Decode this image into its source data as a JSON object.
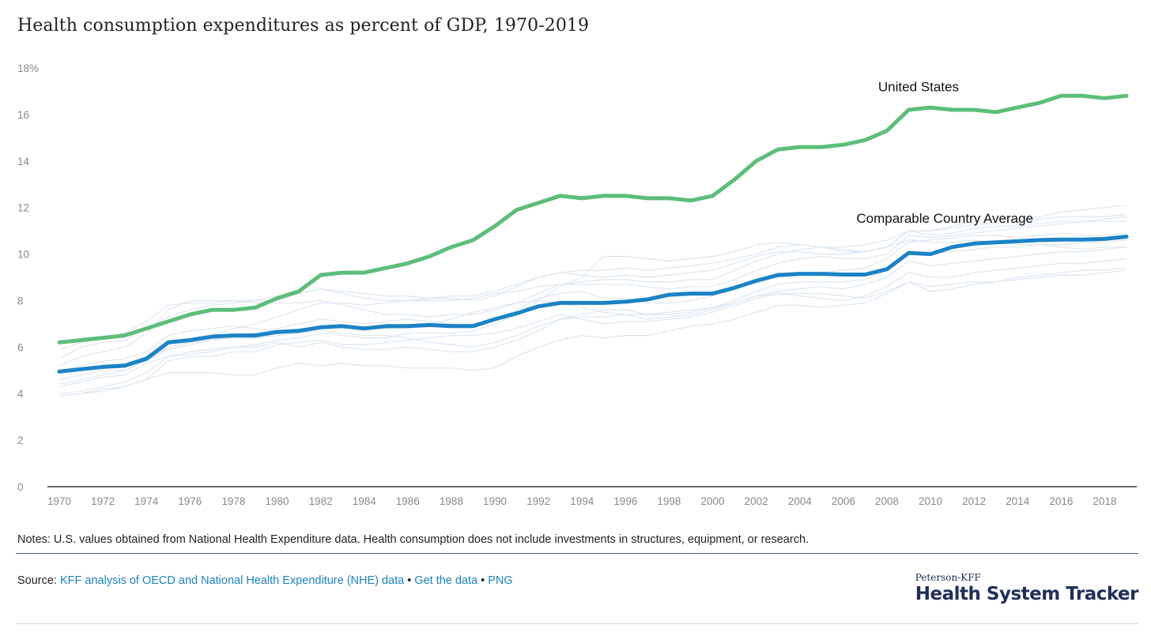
{
  "title": "Health consumption expenditures as percent of GDP, 1970-2019",
  "notes": "Notes: U.S. values obtained from National Health Expenditure data. Health consumption does not include investments in structures, equipment, or research.",
  "source": {
    "label": "Source:",
    "link1": "KFF analysis of OECD and National Health Expenditure (NHE) data",
    "link2": "Get the data",
    "link3": "PNG",
    "separator": "•"
  },
  "brand": {
    "top": "Peterson-KFF",
    "main": "Health System Tracker"
  },
  "colors": {
    "us": "#5cbe7a",
    "avg": "#1b83c6",
    "countries": "#dde7f0",
    "axis": "#111111",
    "tick_text": "#8a8a8a"
  },
  "chart_data": {
    "type": "line",
    "title": "Health consumption expenditures as percent of GDP, 1970-2019",
    "xlabel": "",
    "ylabel": "",
    "xlim": [
      1970,
      2019
    ],
    "ylim": [
      0,
      18
    ],
    "x_ticks": [
      "1970",
      "1972",
      "1974",
      "1976",
      "1978",
      "1980",
      "1982",
      "1984",
      "1986",
      "1988",
      "1990",
      "1992",
      "1994",
      "1996",
      "1998",
      "2000",
      "2002",
      "2004",
      "2006",
      "2008",
      "2010",
      "2012",
      "2014",
      "2016",
      "2018"
    ],
    "y_ticks": [
      "0",
      "2",
      "4",
      "6",
      "8",
      "10",
      "12",
      "14",
      "16",
      "18%"
    ],
    "grid": false,
    "x": [
      1970,
      1971,
      1972,
      1973,
      1974,
      1975,
      1976,
      1977,
      1978,
      1979,
      1980,
      1981,
      1982,
      1983,
      1984,
      1985,
      1986,
      1987,
      1988,
      1989,
      1990,
      1991,
      1992,
      1993,
      1994,
      1995,
      1996,
      1997,
      1998,
      1999,
      2000,
      2001,
      2002,
      2003,
      2004,
      2005,
      2006,
      2007,
      2008,
      2009,
      2010,
      2011,
      2012,
      2013,
      2014,
      2015,
      2016,
      2017,
      2018,
      2019
    ],
    "series": [
      {
        "name": "United States",
        "label": "United States",
        "emphasis": true,
        "values": [
          6.2,
          6.3,
          6.4,
          6.5,
          6.8,
          7.1,
          7.4,
          7.6,
          7.6,
          7.7,
          8.1,
          8.4,
          9.1,
          9.2,
          9.2,
          9.4,
          9.6,
          9.9,
          10.3,
          10.6,
          11.2,
          11.9,
          12.2,
          12.5,
          12.4,
          12.5,
          12.5,
          12.4,
          12.4,
          12.3,
          12.5,
          13.2,
          14.0,
          14.5,
          14.6,
          14.6,
          14.7,
          14.9,
          15.3,
          16.2,
          16.3,
          16.2,
          16.2,
          16.1,
          16.3,
          16.5,
          16.8,
          16.8,
          16.7,
          16.8
        ]
      },
      {
        "name": "Comparable Country Average",
        "label": "Comparable Country Average",
        "emphasis": true,
        "values": [
          4.95,
          5.05,
          5.15,
          5.2,
          5.5,
          6.2,
          6.3,
          6.45,
          6.5,
          6.5,
          6.65,
          6.7,
          6.85,
          6.9,
          6.8,
          6.9,
          6.9,
          6.95,
          6.9,
          6.9,
          7.2,
          7.45,
          7.75,
          7.9,
          7.9,
          7.9,
          7.95,
          8.05,
          8.25,
          8.3,
          8.3,
          8.55,
          8.85,
          9.1,
          9.15,
          9.15,
          9.12,
          9.12,
          9.35,
          10.05,
          10.0,
          10.3,
          10.45,
          10.5,
          10.55,
          10.6,
          10.62,
          10.62,
          10.65,
          10.75
        ]
      },
      {
        "name": "",
        "emphasis": false,
        "values": [
          5.5,
          6.0,
          6.2,
          6.3,
          6.8,
          7.3,
          7.6,
          7.8,
          7.9,
          8.0,
          8.2,
          8.3,
          8.5,
          8.4,
          8.3,
          8.2,
          8.2,
          8.1,
          8.1,
          8.0,
          8.2,
          8.6,
          9.0,
          9.2,
          9.3,
          9.3,
          9.4,
          9.3,
          9.4,
          9.5,
          9.6,
          9.8,
          10.0,
          10.3,
          10.4,
          10.3,
          10.3,
          10.4,
          10.6,
          11.0,
          11.0,
          11.1,
          11.3,
          11.3,
          11.4,
          11.5,
          11.6,
          11.6,
          11.6,
          11.7
        ]
      },
      {
        "name": "",
        "emphasis": false,
        "values": [
          5.2,
          5.6,
          5.8,
          6.0,
          6.6,
          7.6,
          8.0,
          8.0,
          8.0,
          7.9,
          7.9,
          7.9,
          8.0,
          7.8,
          7.6,
          7.4,
          7.4,
          7.3,
          7.4,
          7.4,
          7.6,
          7.9,
          8.3,
          8.7,
          8.8,
          8.9,
          8.9,
          8.8,
          8.8,
          8.9,
          8.9,
          9.3,
          9.7,
          10.0,
          10.2,
          10.3,
          10.2,
          10.1,
          10.3,
          11.0,
          10.8,
          10.9,
          11.1,
          11.2,
          11.2,
          11.3,
          11.4,
          11.4,
          11.4,
          11.4
        ]
      },
      {
        "name": "",
        "emphasis": false,
        "values": [
          4.3,
          4.5,
          4.7,
          4.8,
          5.3,
          5.6,
          5.8,
          5.9,
          6.0,
          6.1,
          6.3,
          6.4,
          6.6,
          6.5,
          6.4,
          6.4,
          6.6,
          6.6,
          6.6,
          6.7,
          7.0,
          7.4,
          8.0,
          8.6,
          9.0,
          9.9,
          9.9,
          9.8,
          9.7,
          9.8,
          9.9,
          10.1,
          10.4,
          10.5,
          10.4,
          10.3,
          10.1,
          10.1,
          10.3,
          10.6,
          10.5,
          10.5,
          10.6,
          10.5,
          10.4,
          10.4,
          10.3,
          10.2,
          10.3,
          10.3
        ]
      },
      {
        "name": "",
        "emphasis": false,
        "values": [
          4.6,
          4.8,
          5.0,
          5.0,
          5.4,
          5.9,
          6.1,
          6.3,
          6.5,
          6.6,
          6.8,
          7.0,
          7.2,
          7.1,
          7.0,
          7.1,
          7.2,
          7.1,
          7.0,
          7.0,
          7.2,
          7.6,
          8.1,
          8.3,
          8.4,
          8.1,
          8.1,
          7.9,
          7.9,
          8.0,
          8.2,
          8.5,
          8.8,
          9.0,
          9.1,
          9.2,
          9.3,
          9.4,
          9.8,
          10.5,
          10.6,
          10.7,
          10.8,
          10.8,
          10.7,
          10.8,
          10.9,
          10.8,
          10.8,
          10.9
        ]
      },
      {
        "name": "",
        "emphasis": false,
        "values": [
          5.0,
          5.2,
          5.4,
          5.5,
          5.8,
          6.5,
          6.7,
          6.8,
          6.9,
          6.8,
          6.7,
          6.6,
          6.8,
          6.9,
          6.9,
          6.8,
          6.8,
          7.0,
          7.2,
          7.5,
          7.7,
          7.9,
          8.0,
          7.9,
          7.7,
          7.5,
          7.4,
          7.2,
          7.3,
          7.4,
          7.6,
          7.9,
          8.2,
          8.3,
          8.2,
          8.1,
          8.0,
          8.2,
          8.6,
          9.2,
          9.0,
          9.0,
          9.2,
          9.3,
          9.4,
          9.5,
          9.6,
          9.6,
          9.7,
          9.8
        ]
      },
      {
        "name": "",
        "emphasis": false,
        "values": [
          3.9,
          4.0,
          4.1,
          4.3,
          4.6,
          5.4,
          5.6,
          5.6,
          5.8,
          5.8,
          6.1,
          6.2,
          6.3,
          6.1,
          6.1,
          6.2,
          6.3,
          6.4,
          6.5,
          6.5,
          6.6,
          6.8,
          7.1,
          7.4,
          7.2,
          7.0,
          7.1,
          7.1,
          7.2,
          7.3,
          7.5,
          7.8,
          8.1,
          8.3,
          8.3,
          8.3,
          8.2,
          8.1,
          8.4,
          8.8,
          8.6,
          8.7,
          8.8,
          8.8,
          8.9,
          9.0,
          9.1,
          9.1,
          9.2,
          9.3
        ]
      },
      {
        "name": "",
        "emphasis": false,
        "values": [
          4.0,
          4.1,
          4.3,
          4.5,
          4.9,
          5.6,
          5.7,
          5.8,
          6.0,
          6.0,
          6.2,
          6.0,
          6.2,
          6.0,
          5.9,
          5.9,
          6.0,
          5.9,
          5.8,
          5.8,
          6.0,
          6.3,
          6.7,
          7.2,
          7.4,
          7.6,
          7.6,
          7.4,
          7.5,
          7.6,
          7.7,
          7.9,
          8.2,
          8.4,
          8.5,
          8.6,
          8.5,
          8.7,
          9.0,
          9.7,
          9.5,
          9.6,
          9.7,
          9.8,
          9.9,
          10.0,
          10.1,
          10.1,
          10.2,
          10.3
        ]
      },
      {
        "name": "",
        "emphasis": false,
        "values": [
          5.9,
          6.2,
          6.4,
          6.6,
          7.1,
          7.8,
          7.9,
          7.9,
          8.0,
          8.0,
          8.0,
          8.3,
          8.5,
          8.3,
          8.1,
          8.0,
          8.0,
          8.0,
          8.0,
          8.1,
          8.3,
          8.4,
          8.6,
          8.7,
          8.7,
          8.7,
          8.7,
          8.6,
          8.5,
          8.6,
          8.6,
          8.9,
          9.3,
          9.6,
          9.8,
          9.9,
          9.8,
          9.8,
          10.0,
          10.8,
          10.7,
          10.8,
          10.9,
          11.0,
          11.1,
          11.2,
          11.3,
          11.4,
          11.5,
          11.6
        ]
      },
      {
        "name": "",
        "emphasis": false,
        "values": [
          4.4,
          4.6,
          4.8,
          5.0,
          5.4,
          6.0,
          6.2,
          6.3,
          6.4,
          6.4,
          6.5,
          6.6,
          6.7,
          6.6,
          6.5,
          6.5,
          6.4,
          6.2,
          6.1,
          6.0,
          6.2,
          6.5,
          6.9,
          7.2,
          7.3,
          7.3,
          7.4,
          7.4,
          7.4,
          7.5,
          7.7,
          8.0,
          8.4,
          8.7,
          8.8,
          8.8,
          8.8,
          8.9,
          9.3,
          10.1,
          10.0,
          10.1,
          10.2,
          10.3,
          10.3,
          10.4,
          10.4,
          10.5,
          10.5,
          10.6
        ]
      },
      {
        "name": "",
        "emphasis": false,
        "values": [
          4.9,
          5.1,
          5.2,
          5.3,
          5.6,
          6.0,
          6.2,
          6.5,
          6.8,
          7.0,
          7.3,
          7.6,
          7.9,
          7.9,
          7.8,
          7.9,
          8.0,
          8.1,
          8.2,
          8.2,
          8.4,
          8.7,
          9.0,
          9.2,
          9.1,
          9.0,
          9.1,
          9.0,
          9.1,
          9.2,
          9.3,
          9.6,
          9.9,
          10.1,
          10.1,
          10.0,
          10.0,
          10.1,
          10.3,
          11.0,
          11.0,
          11.2,
          11.4,
          11.5,
          11.5,
          11.6,
          11.8,
          11.9,
          12.0,
          12.1
        ]
      },
      {
        "name": "",
        "emphasis": false,
        "values": [
          3.9,
          4.0,
          4.2,
          4.3,
          4.6,
          4.9,
          4.9,
          4.9,
          4.8,
          4.8,
          5.1,
          5.3,
          5.2,
          5.3,
          5.2,
          5.2,
          5.1,
          5.1,
          5.1,
          5.0,
          5.1,
          5.6,
          6.0,
          6.3,
          6.5,
          6.4,
          6.5,
          6.5,
          6.7,
          6.9,
          7.0,
          7.2,
          7.5,
          7.8,
          7.8,
          7.7,
          7.8,
          7.9,
          8.3,
          8.8,
          8.4,
          8.5,
          8.7,
          8.8,
          9.0,
          9.1,
          9.2,
          9.3,
          9.3,
          9.4
        ]
      }
    ]
  }
}
